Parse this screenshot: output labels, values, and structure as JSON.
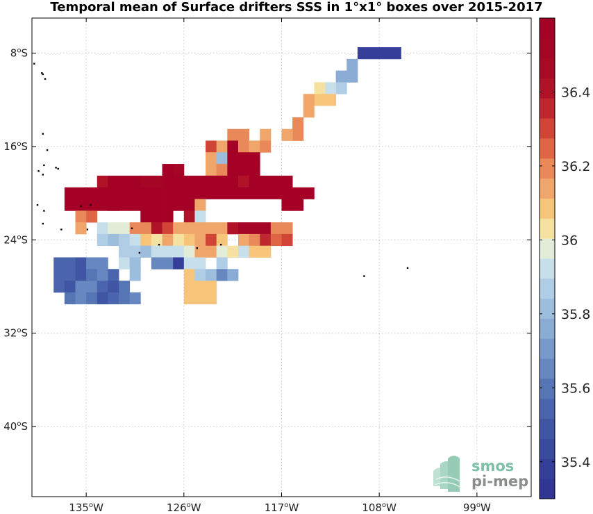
{
  "chart_data": {
    "type": "heatmap",
    "title": "Temporal mean of Surface drifters SSS in 1°x1° boxes over 2015-2017",
    "xlim": [
      -140,
      -94
    ],
    "ylim": [
      -46,
      -5
    ],
    "x_ticks": [
      {
        "value": -135,
        "label": "135",
        "hemi": "W"
      },
      {
        "value": -126,
        "label": "126",
        "hemi": "W"
      },
      {
        "value": -117,
        "label": "117",
        "hemi": "W"
      },
      {
        "value": -108,
        "label": "108",
        "hemi": "W"
      },
      {
        "value": -99,
        "label": "99",
        "hemi": "W"
      }
    ],
    "y_ticks": [
      {
        "value": -8,
        "label": "8",
        "hemi": "S"
      },
      {
        "value": -16,
        "label": "16",
        "hemi": "S"
      },
      {
        "value": -24,
        "label": "24",
        "hemi": "S"
      },
      {
        "value": -32,
        "label": "32",
        "hemi": "S"
      },
      {
        "value": -40,
        "label": "40",
        "hemi": "S"
      }
    ],
    "grid": true,
    "colorbar": {
      "vmin": 35.3,
      "vmax": 36.6,
      "step": 0.05,
      "ticks": [
        35.4,
        35.6,
        35.8,
        36.0,
        36.2,
        36.4
      ],
      "tick_labels": [
        "35.4",
        "35.6",
        "35.8",
        "36",
        "36.2",
        "36.4"
      ],
      "colors": [
        "#313695",
        "#353f99",
        "#3a4a9e",
        "#4055a4",
        "#4a65ad",
        "#5575b5",
        "#6687bf",
        "#7899c9",
        "#8aabd3",
        "#9cbddc",
        "#afcde5",
        "#c7dfea",
        "#e3ecd7",
        "#f6e2a0",
        "#f6c57a",
        "#f0a66a",
        "#e98858",
        "#e06545",
        "#d14537",
        "#c0282f",
        "#b01328",
        "#a70a24",
        "#a50626",
        "#a50026"
      ]
    },
    "cell_size_deg": 1,
    "cells": [
      [
        -110,
        -8,
        35.38
      ],
      [
        -109,
        -8,
        35.35
      ],
      [
        -108,
        -8,
        35.35
      ],
      [
        -107,
        -8,
        35.35
      ],
      [
        -111,
        -9,
        35.72
      ],
      [
        -111,
        -10,
        35.72
      ],
      [
        -112,
        -10,
        35.7
      ],
      [
        -112,
        -11,
        35.8
      ],
      [
        -113,
        -11,
        35.88
      ],
      [
        -114,
        -11,
        35.95
      ],
      [
        -113,
        -12,
        36.0
      ],
      [
        -114,
        -12,
        36.0
      ],
      [
        -115,
        -12,
        36.08
      ],
      [
        -115,
        -13,
        36.08
      ],
      [
        -116,
        -14,
        36.1
      ],
      [
        -116,
        -15,
        36.1
      ],
      [
        -121,
        -15,
        36.12
      ],
      [
        -122,
        -15,
        36.12
      ],
      [
        -119,
        -15,
        36.05
      ],
      [
        -117,
        -15,
        36.08
      ],
      [
        -124,
        -16,
        36.22
      ],
      [
        -123,
        -16,
        36.05
      ],
      [
        -122,
        -16,
        36.5
      ],
      [
        -121,
        -16,
        36.1
      ],
      [
        -120,
        -16,
        36.05
      ],
      [
        -119,
        -16,
        36.12
      ],
      [
        -124,
        -17,
        36.05
      ],
      [
        -123,
        -17,
        35.75
      ],
      [
        -122,
        -17,
        36.5
      ],
      [
        -121,
        -17,
        36.55
      ],
      [
        -120,
        -17,
        36.55
      ],
      [
        -124,
        -18,
        36.08
      ],
      [
        -123,
        -18,
        36.1
      ],
      [
        -122,
        -18,
        36.45
      ],
      [
        -121,
        -18,
        36.55
      ],
      [
        -120,
        -18,
        36.55
      ],
      [
        -128,
        -18,
        36.55
      ],
      [
        -127,
        -18,
        36.4
      ],
      [
        -134,
        -19,
        36.3
      ],
      [
        -133,
        -19,
        36.45
      ],
      [
        -132,
        -19,
        36.5
      ],
      [
        -131,
        -19,
        36.5
      ],
      [
        -130,
        -19,
        36.4
      ],
      [
        -129,
        -19,
        36.4
      ],
      [
        -128,
        -19,
        36.55
      ],
      [
        -127,
        -19,
        36.55
      ],
      [
        -126,
        -19,
        36.55
      ],
      [
        -125,
        -19,
        36.55
      ],
      [
        -124,
        -19,
        36.55
      ],
      [
        -123,
        -19,
        36.55
      ],
      [
        -122,
        -19,
        36.55
      ],
      [
        -121,
        -19,
        36.3
      ],
      [
        -120,
        -19,
        36.55
      ],
      [
        -119,
        -19,
        36.55
      ],
      [
        -118,
        -19,
        36.55
      ],
      [
        -117,
        -19,
        36.55
      ],
      [
        -137,
        -20,
        36.55
      ],
      [
        -136,
        -20,
        36.55
      ],
      [
        -135,
        -20,
        36.55
      ],
      [
        -134,
        -20,
        36.55
      ],
      [
        -133,
        -20,
        36.55
      ],
      [
        -132,
        -20,
        36.55
      ],
      [
        -131,
        -20,
        36.55
      ],
      [
        -130,
        -20,
        36.55
      ],
      [
        -129,
        -20,
        36.55
      ],
      [
        -128,
        -20,
        36.55
      ],
      [
        -127,
        -20,
        36.45
      ],
      [
        -126,
        -20,
        36.55
      ],
      [
        -125,
        -20,
        36.55
      ],
      [
        -124,
        -20,
        36.55
      ],
      [
        -123,
        -20,
        36.55
      ],
      [
        -122,
        -20,
        36.55
      ],
      [
        -121,
        -20,
        36.55
      ],
      [
        -120,
        -20,
        36.55
      ],
      [
        -119,
        -20,
        36.55
      ],
      [
        -118,
        -20,
        36.55
      ],
      [
        -117,
        -20,
        36.55
      ],
      [
        -116,
        -20,
        36.55
      ],
      [
        -115,
        -20,
        36.55
      ],
      [
        -137,
        -21,
        36.55
      ],
      [
        -136,
        -21,
        36.55
      ],
      [
        -135,
        -21,
        36.55
      ],
      [
        -134,
        -21,
        36.55
      ],
      [
        -133,
        -21,
        36.55
      ],
      [
        -126,
        -21,
        36.5
      ],
      [
        -125,
        -21,
        36.05
      ],
      [
        -117,
        -21,
        36.55
      ],
      [
        -116,
        -21,
        36.55
      ],
      [
        -133,
        -21,
        36.55
      ],
      [
        -132,
        -21,
        36.55
      ],
      [
        -131,
        -21,
        36.55
      ],
      [
        -130,
        -21,
        36.55
      ],
      [
        -129,
        -21,
        36.55
      ],
      [
        -128,
        -21,
        36.55
      ],
      [
        -127,
        -21,
        36.55
      ],
      [
        -136,
        -22,
        36.1
      ],
      [
        -135,
        -22,
        36.15
      ],
      [
        -130,
        -22,
        36.55
      ],
      [
        -129,
        -22,
        36.45
      ],
      [
        -128,
        -22,
        36.45
      ],
      [
        -126,
        -22,
        36.3
      ],
      [
        -125,
        -22,
        35.85
      ],
      [
        -136,
        -23,
        36.05
      ],
      [
        -134,
        -23,
        35.85
      ],
      [
        -133,
        -23,
        35.9
      ],
      [
        -132,
        -23,
        35.9
      ],
      [
        -131,
        -23,
        36.1
      ],
      [
        -130,
        -23,
        36.1
      ],
      [
        -129,
        -23,
        36.3
      ],
      [
        -128,
        -23,
        36.2
      ],
      [
        -127,
        -23,
        36.05
      ],
      [
        -126,
        -23,
        36.05
      ],
      [
        -125,
        -23,
        36.05
      ],
      [
        -124,
        -23,
        36.08
      ],
      [
        -123,
        -23,
        36.08
      ],
      [
        -122,
        -23,
        36.3
      ],
      [
        -121,
        -23,
        36.4
      ],
      [
        -120,
        -23,
        36.4
      ],
      [
        -119,
        -23,
        36.4
      ],
      [
        -118,
        -23,
        36.1
      ],
      [
        -117,
        -23,
        36.1
      ],
      [
        -134,
        -24,
        35.8
      ],
      [
        -133,
        -24,
        35.75
      ],
      [
        -132,
        -24,
        35.8
      ],
      [
        -131,
        -24,
        35.85
      ],
      [
        -130,
        -24,
        36.0
      ],
      [
        -129,
        -24,
        35.95
      ],
      [
        -128,
        -24,
        36.05
      ],
      [
        -127,
        -24,
        35.98
      ],
      [
        -126,
        -24,
        36.0
      ],
      [
        -125,
        -24,
        36.05
      ],
      [
        -124,
        -24,
        36.2
      ],
      [
        -123,
        -24,
        36.0
      ],
      [
        -121,
        -24,
        36.05
      ],
      [
        -120,
        -24,
        36.1
      ],
      [
        -119,
        -24,
        36.25
      ],
      [
        -118,
        -24,
        36.15
      ],
      [
        -117,
        -24,
        36.2
      ],
      [
        -132,
        -25,
        35.8
      ],
      [
        -131,
        -25,
        35.8
      ],
      [
        -130,
        -25,
        35.75
      ],
      [
        -129,
        -25,
        35.85
      ],
      [
        -128,
        -25,
        35.85
      ],
      [
        -127,
        -25,
        35.85
      ],
      [
        -126,
        -25,
        35.9
      ],
      [
        -125,
        -25,
        36.05
      ],
      [
        -124,
        -25,
        36.05
      ],
      [
        -123,
        -25,
        35.9
      ],
      [
        -122,
        -25,
        35.95
      ],
      [
        -121,
        -25,
        35.85
      ],
      [
        -120,
        -25,
        36.0
      ],
      [
        -119,
        -25,
        36.0
      ],
      [
        -138,
        -26,
        35.5
      ],
      [
        -137,
        -26,
        35.5
      ],
      [
        -136,
        -26,
        35.45
      ],
      [
        -135,
        -26,
        35.6
      ],
      [
        -134,
        -26,
        35.6
      ],
      [
        -132,
        -26,
        35.85
      ],
      [
        -131,
        -26,
        35.75
      ],
      [
        -129,
        -26,
        35.6
      ],
      [
        -128,
        -26,
        35.6
      ],
      [
        -127,
        -26,
        35.35
      ],
      [
        -126,
        -26,
        35.85
      ],
      [
        -125,
        -26,
        35.85
      ],
      [
        -123,
        -26,
        35.8
      ],
      [
        -138,
        -27,
        35.5
      ],
      [
        -137,
        -27,
        35.5
      ],
      [
        -136,
        -27,
        35.45
      ],
      [
        -135,
        -27,
        35.55
      ],
      [
        -134,
        -27,
        35.6
      ],
      [
        -133,
        -27,
        35.5
      ],
      [
        -131,
        -27,
        35.75
      ],
      [
        -126,
        -27,
        36.0
      ],
      [
        -125,
        -27,
        35.8
      ],
      [
        -124,
        -27,
        35.75
      ],
      [
        -123,
        -27,
        35.6
      ],
      [
        -122,
        -27,
        35.7
      ],
      [
        -138,
        -28,
        35.5
      ],
      [
        -137,
        -28,
        35.45
      ],
      [
        -136,
        -28,
        35.6
      ],
      [
        -135,
        -28,
        35.6
      ],
      [
        -134,
        -28,
        35.5
      ],
      [
        -133,
        -28,
        35.45
      ],
      [
        -132,
        -28,
        35.55
      ],
      [
        -126,
        -28,
        36.0
      ],
      [
        -125,
        -28,
        36.0
      ],
      [
        -124,
        -28,
        36.0
      ],
      [
        -137,
        -29,
        35.55
      ],
      [
        -136,
        -29,
        35.6
      ],
      [
        -135,
        -29,
        35.55
      ],
      [
        -134,
        -29,
        35.45
      ],
      [
        -133,
        -29,
        35.5
      ],
      [
        -132,
        -29,
        35.55
      ],
      [
        -131,
        -29,
        35.6
      ],
      [
        -126,
        -29,
        36.0
      ],
      [
        -125,
        -29,
        36.0
      ],
      [
        -124,
        -29,
        36.0
      ]
    ],
    "islands": [
      [
        -139.8,
        -8.9
      ],
      [
        -139.1,
        -9.7
      ],
      [
        -139.0,
        -9.8
      ],
      [
        -138.8,
        -10.2
      ],
      [
        -139.0,
        -14.9
      ],
      [
        -138.6,
        -16.3
      ],
      [
        -138.9,
        -17.6
      ],
      [
        -137.8,
        -17.8
      ],
      [
        -137.6,
        -17.9
      ],
      [
        -139.4,
        -18.1
      ],
      [
        -139.0,
        -18.4
      ],
      [
        -139.5,
        -21.0
      ],
      [
        -138.9,
        -21.5
      ],
      [
        -139.0,
        -22.6
      ],
      [
        -137.3,
        -23.1
      ],
      [
        -134.9,
        -23.1
      ],
      [
        -134.6,
        -21.0
      ],
      [
        -135.5,
        -21.1
      ],
      [
        -130.1,
        -25.1
      ],
      [
        -128.3,
        -24.4
      ],
      [
        -124.8,
        -24.7
      ],
      [
        -122.6,
        -24.4
      ],
      [
        -130.8,
        -23.0
      ],
      [
        -109.4,
        -27.1
      ],
      [
        -105.4,
        -26.4
      ]
    ]
  },
  "logo": {
    "line1": "smos",
    "line2": "pi-mep"
  }
}
